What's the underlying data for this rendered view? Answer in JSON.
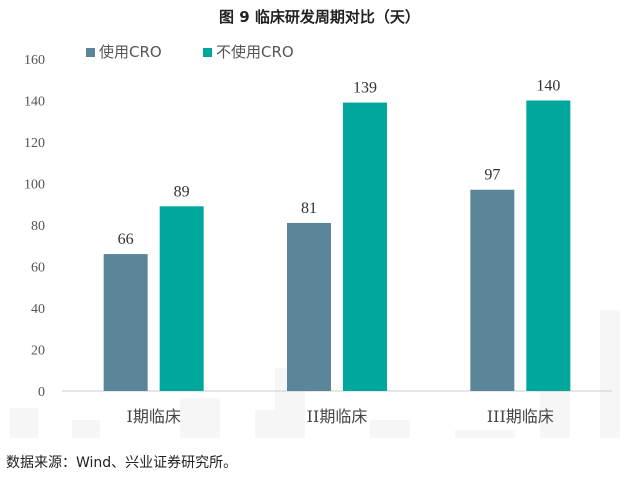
{
  "title": "图 9  临床研发周期对比（天）",
  "source": "数据来源：Wind、兴业证券研究所。",
  "chart_data": {
    "type": "bar",
    "title": "图 9  临床研发周期对比（天）",
    "categories": [
      "I期临床",
      "II期临床",
      "III期临床"
    ],
    "series": [
      {
        "name": "使用CRO",
        "values": [
          66,
          81,
          97
        ],
        "color": "#5b8599"
      },
      {
        "name": "不使用CRO",
        "values": [
          89,
          139,
          140
        ],
        "color": "#00a79d"
      }
    ],
    "xlabel": "",
    "ylabel": "",
    "ylim": [
      0,
      160
    ],
    "yticks": [
      0,
      20,
      40,
      60,
      80,
      100,
      120,
      140,
      160
    ],
    "grid": false,
    "legend": "top-left",
    "data_labels": true
  }
}
